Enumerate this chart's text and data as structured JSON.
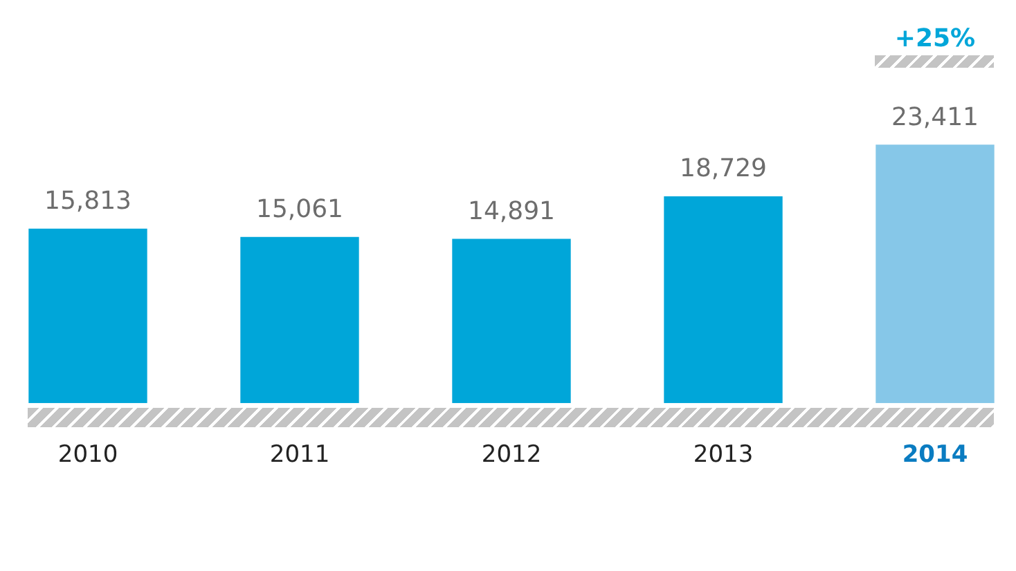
{
  "chart_data": {
    "type": "bar",
    "categories": [
      "2010",
      "2011",
      "2012",
      "2013",
      "2014"
    ],
    "values": [
      15813,
      15061,
      14891,
      18729,
      23411
    ],
    "colors": [
      "#00a6d9",
      "#00a6d9",
      "#00a6d9",
      "#00a6d9",
      "#86c7e8"
    ],
    "value_labels": [
      "15,813",
      "15,061",
      "14,891",
      "18,729",
      "23,411"
    ],
    "tick_labels": "x",
    "grid": false,
    "legend": false,
    "annotations": [
      "+25%"
    ]
  }
}
